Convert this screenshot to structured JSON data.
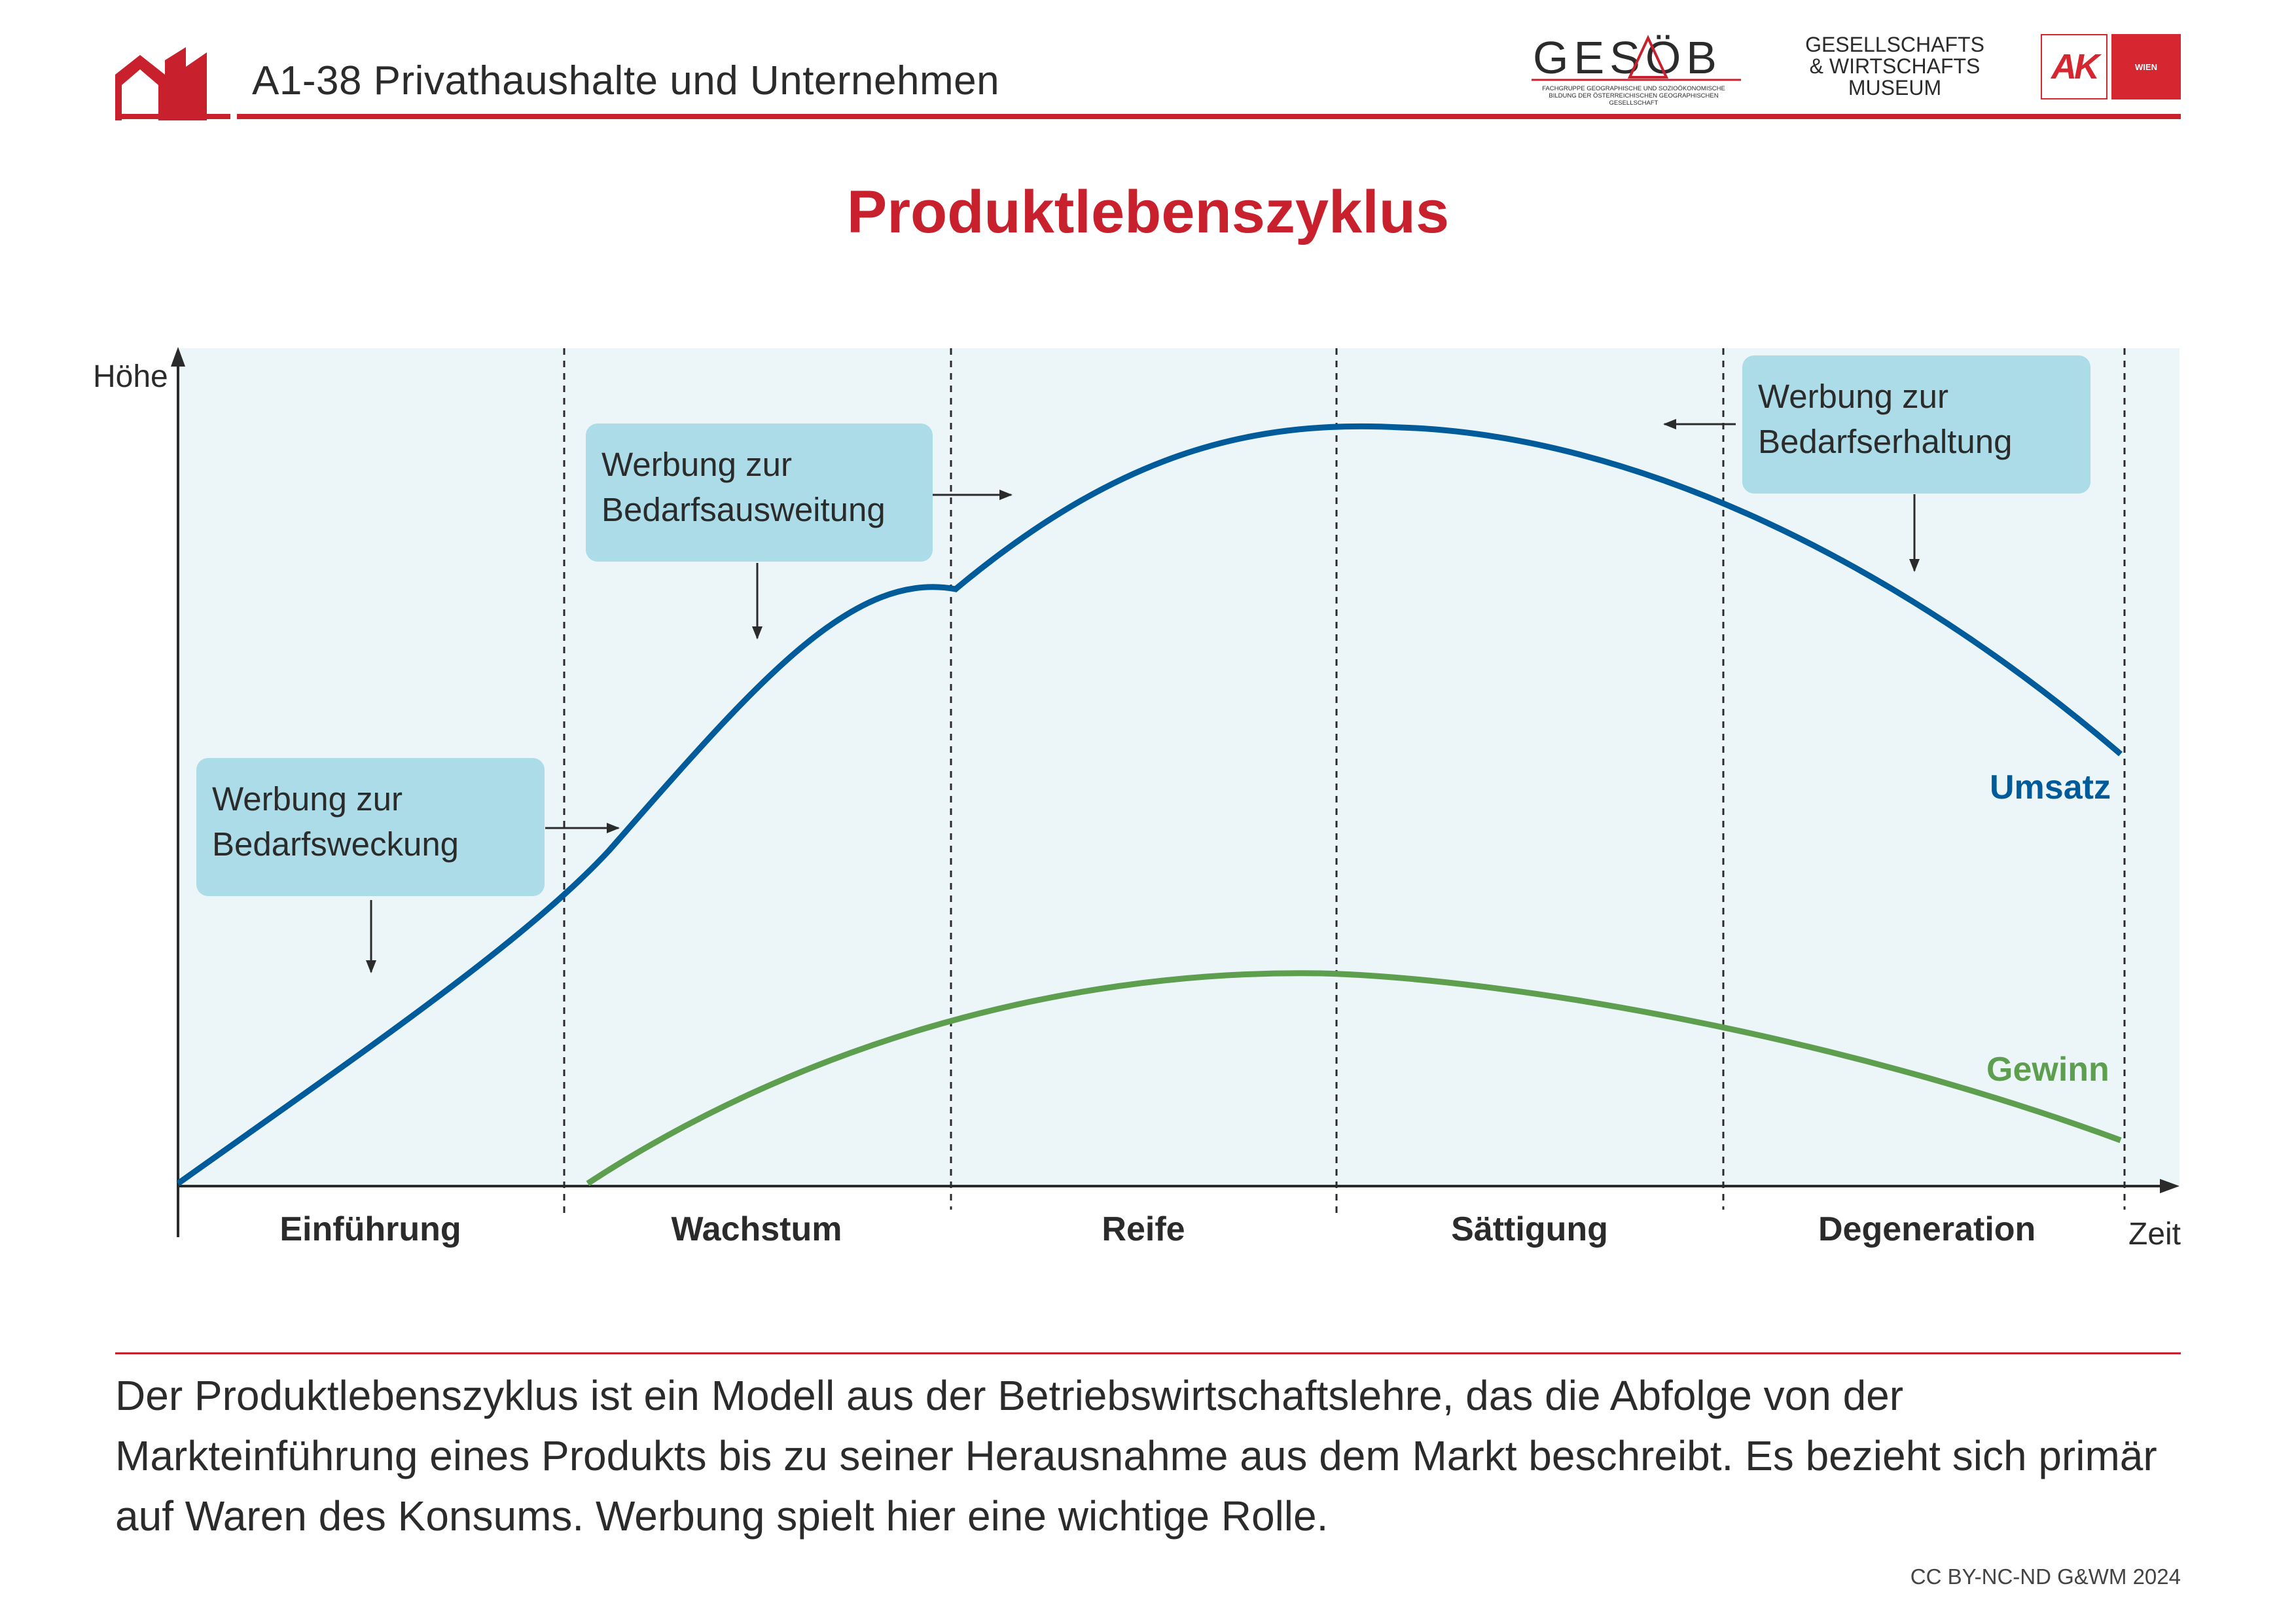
{
  "header": {
    "title": "A1-38 Privathaushalte und Unternehmen",
    "logos": {
      "gesoeb": "GESÖB",
      "gesoeb_sub": "FACHGRUPPE GEOGRAPHISCHE UND SOZIOÖKONOMISCHE BILDUNG DER ÖSTERREICHISCHEN GEOGRAPHISCHEN GESELLSCHAFT",
      "museum": [
        "GESELLSCHAFTS",
        "& WIRTSCHAFTS",
        "MUSEUM"
      ],
      "ak": "AK",
      "ak_sub": "WIEN"
    },
    "accent_color": "#c8202d"
  },
  "page_title": "Produktlebenszyklus",
  "diagram": {
    "y_axis_label": "Höhe",
    "x_axis_label": "Zeit",
    "phases": [
      "Einführung",
      "Wachstum",
      "Reife",
      "Sättigung",
      "Degeneration"
    ],
    "series": {
      "umsatz": {
        "label": "Umsatz",
        "color": "#005b9a"
      },
      "gewinn": {
        "label": "Gewinn",
        "color": "#5e9e4f"
      }
    },
    "callouts": [
      {
        "lines": [
          "Werbung zur",
          "Bedarfsweckung"
        ]
      },
      {
        "lines": [
          "Werbung zur",
          "Bedarfsausweitung"
        ]
      },
      {
        "lines": [
          "Werbung zur",
          "Bedarfserhaltung"
        ]
      }
    ],
    "background_color": "#ecf6f9",
    "callout_color": "#abdce7"
  },
  "description": "Der Produktlebenszyklus ist ein Modell aus der Betriebswirtschaftslehre, das die Abfolge von der Markteinführung eines Produkts bis zu seiner Herausnahme aus dem Markt beschreibt. Es bezieht sich primär auf Waren des Konsums. Werbung spielt hier eine wichtige Rolle.",
  "license": "CC BY-NC-ND G&WM 2024"
}
